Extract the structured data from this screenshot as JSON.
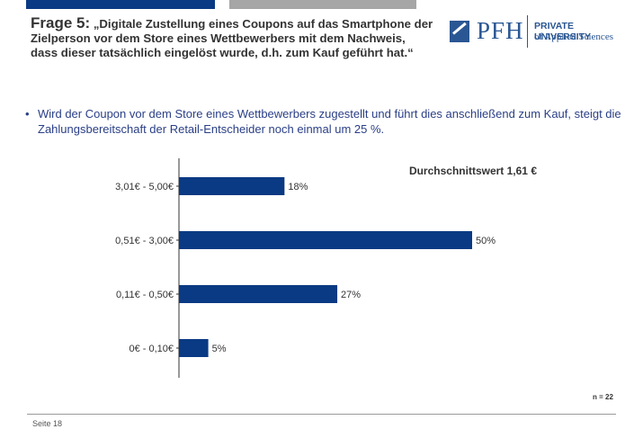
{
  "header": {
    "question_number": "Frage 5:",
    "question_text": "„Digitale Zustellung eines Coupons auf das Smartphone der Zielperson vor dem Store eines Wettbewerbers mit dem Nachweis, dass dieser tatsächlich eingelöst wurde, d.h. zum Kauf geführt hat.“"
  },
  "logo": {
    "wordmark": "PFH",
    "line1": "PRIVATE UNIVERSITY",
    "line2": "of Applied Sciences"
  },
  "bullet": {
    "symbol": "•",
    "text": "Wird der Coupon vor dem Store eines Wettbewerbers zugestellt und führt dies anschließend zum Kauf, steigt die Zahlungsbereitschaft der Retail-Entscheider noch einmal um 25 %."
  },
  "chart_data": {
    "type": "bar",
    "orientation": "horizontal",
    "categories": [
      "3,01€ - 5,00€",
      "0,51€ - 3,00€",
      "0,11€ - 0,50€",
      "0€ - 0,10€"
    ],
    "values": [
      18,
      50,
      27,
      5
    ],
    "value_labels": [
      "18%",
      "50%",
      "27%",
      "5%"
    ],
    "annotation": "Durchschnittswert 1,61 €",
    "xlim": [
      0,
      50
    ],
    "bar_color": "#0a3a83",
    "grid": false
  },
  "sample_size": "n = 22",
  "footer": {
    "page": "Seite 18"
  },
  "colors": {
    "accent_blue": "#0a3a83",
    "bar_gray": "#a6a6a6",
    "text_blue": "#2a3f86"
  }
}
